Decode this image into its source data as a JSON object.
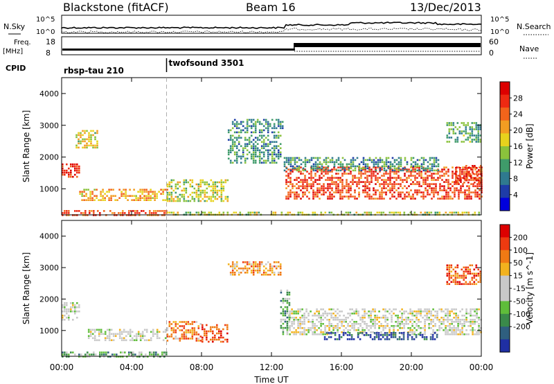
{
  "header": {
    "title": "Blackstone (fitACF)",
    "beam": "Beam 16",
    "date": "13/Dec/2013"
  },
  "top_panels": {
    "nsky_label": "N.Sky",
    "nsearch_label": "N.Search",
    "nsky_ticks": [
      "10^5",
      "10^0"
    ],
    "nsearch_ticks": [
      "10^5",
      "10^0"
    ],
    "freq_label": "Freq.",
    "freq_unit": "[MHz]",
    "freq_ticks": [
      "18",
      "8"
    ],
    "nave_label": "Nave",
    "nave_ticks": [
      "60",
      "0"
    ],
    "cpid_label": "CPID",
    "cpid_segments": [
      {
        "name": "rbsp-tau 210",
        "start_hour": 0,
        "end_hour": 6
      },
      {
        "name": "twofsound 3501",
        "start_hour": 6,
        "end_hour": 24
      }
    ]
  },
  "chart_data": [
    {
      "type": "heatmap",
      "name": "power-panel",
      "ylabel": "Slant Range [km]",
      "yticks": [
        1000,
        2000,
        3000,
        4000
      ],
      "ylim": [
        180,
        4500
      ],
      "xlim": [
        0,
        24
      ],
      "colorbar": {
        "label": "Power [dB]",
        "ticks": [
          "4",
          "8",
          "12",
          "16",
          "20",
          "24",
          "28"
        ],
        "colors": [
          "#0000dd",
          "#1e3ca8",
          "#2f7a8f",
          "#3f9b6a",
          "#8ac23c",
          "#e7d21d",
          "#f29d22",
          "#f2641b",
          "#ee2a12",
          "#dd0000"
        ]
      },
      "bands": [
        {
          "x0": 0.0,
          "x1": 1.0,
          "y0": 1350,
          "y1": 1800,
          "level": 0.9
        },
        {
          "x0": 0.0,
          "x1": 6.0,
          "y0": 180,
          "y1": 330,
          "level": 0.8
        },
        {
          "x0": 6.0,
          "x1": 24.0,
          "y0": 180,
          "y1": 280,
          "level": 0.5
        },
        {
          "x0": 1.0,
          "x1": 6.0,
          "y0": 650,
          "y1": 1000,
          "level": 0.65
        },
        {
          "x0": 6.0,
          "x1": 9.5,
          "y0": 600,
          "y1": 1300,
          "level": 0.5
        },
        {
          "x0": 0.8,
          "x1": 2.0,
          "y0": 2300,
          "y1": 2850,
          "level": 0.55
        },
        {
          "x0": 9.5,
          "x1": 12.7,
          "y0": 2800,
          "y1": 3200,
          "level": 0.25
        },
        {
          "x0": 9.5,
          "x1": 12.5,
          "y0": 1800,
          "y1": 2700,
          "level": 0.3
        },
        {
          "x0": 12.8,
          "x1": 24.0,
          "y0": 700,
          "y1": 1700,
          "level": 0.85
        },
        {
          "x0": 12.7,
          "x1": 21.5,
          "y0": 1600,
          "y1": 2000,
          "level": 0.3
        },
        {
          "x0": 22.0,
          "x1": 24.0,
          "y0": 2500,
          "y1": 3100,
          "level": 0.35
        },
        {
          "x0": 22.5,
          "x1": 24.0,
          "y0": 1200,
          "y1": 1750,
          "level": 0.9
        }
      ]
    },
    {
      "type": "heatmap",
      "name": "velocity-panel",
      "ylabel": "Slant Range [km]",
      "xlabel": "Time UT",
      "xticks": [
        "00:00",
        "04:00",
        "08:00",
        "12:00",
        "16:00",
        "20:00",
        "00:00"
      ],
      "yticks": [
        1000,
        2000,
        3000,
        4000
      ],
      "ylim": [
        180,
        4500
      ],
      "xlim": [
        0,
        24
      ],
      "colorbar": {
        "label": "Velocity [m s^-1]",
        "ticks": [
          "200",
          "100",
          "50",
          "15",
          "-15",
          "-50",
          "-100",
          "-200"
        ],
        "colors": [
          "#1f2fa3",
          "#2f5f7f",
          "#3a8a4a",
          "#5fbd3a",
          "#c8c8c8",
          "#c8c8c8",
          "#f2b21e",
          "#f07a14",
          "#ee3a10",
          "#dd0000"
        ]
      },
      "bands": [
        {
          "x0": 0.0,
          "x1": 1.0,
          "y0": 1350,
          "y1": 1900,
          "level": 0.5
        },
        {
          "x0": 0.0,
          "x1": 6.0,
          "y0": 180,
          "y1": 330,
          "level": 0.3
        },
        {
          "x0": 1.5,
          "x1": 6.0,
          "y0": 700,
          "y1": 1050,
          "level": 0.5
        },
        {
          "x0": 6.0,
          "x1": 8.0,
          "y0": 650,
          "y1": 1300,
          "level": 0.75
        },
        {
          "x0": 8.0,
          "x1": 9.5,
          "y0": 650,
          "y1": 1200,
          "level": 0.9
        },
        {
          "x0": 9.5,
          "x1": 12.5,
          "y0": 2800,
          "y1": 3200,
          "level": 0.7
        },
        {
          "x0": 12.5,
          "x1": 13.0,
          "y0": 900,
          "y1": 2300,
          "level": 0.3
        },
        {
          "x0": 13.0,
          "x1": 24.0,
          "y0": 900,
          "y1": 1700,
          "level": 0.5
        },
        {
          "x0": 15.0,
          "x1": 21.5,
          "y0": 700,
          "y1": 950,
          "level": 0.05
        },
        {
          "x0": 22.0,
          "x1": 24.0,
          "y0": 2500,
          "y1": 3100,
          "level": 0.85
        }
      ]
    }
  ]
}
